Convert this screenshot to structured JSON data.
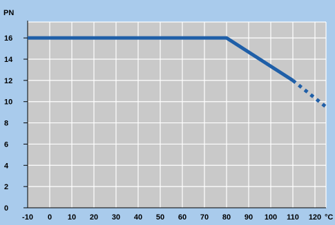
{
  "chart_data": {
    "type": "line",
    "title": "",
    "ylabel": "PN",
    "xlabel": "°C",
    "xlim": [
      -10,
      125
    ],
    "ylim": [
      0,
      17.5
    ],
    "x_ticks": [
      -10,
      0,
      10,
      20,
      30,
      40,
      50,
      60,
      70,
      80,
      90,
      100,
      110,
      120
    ],
    "y_ticks": [
      0,
      2,
      4,
      6,
      8,
      10,
      12,
      14,
      16
    ],
    "grid": true,
    "series": [
      {
        "style": "solid",
        "points": [
          {
            "x": -10,
            "y": 16
          },
          {
            "x": 80,
            "y": 16
          },
          {
            "x": 110,
            "y": 12
          }
        ]
      },
      {
        "style": "dotted",
        "points": [
          {
            "x": 110,
            "y": 12
          },
          {
            "x": 125,
            "y": 9.5
          }
        ]
      }
    ]
  },
  "colors": {
    "background": "#a9cbec",
    "plot_area": "#c9c9c9",
    "grid": "#ffffff",
    "line": "#1f5fa8",
    "axis": "#000000"
  }
}
